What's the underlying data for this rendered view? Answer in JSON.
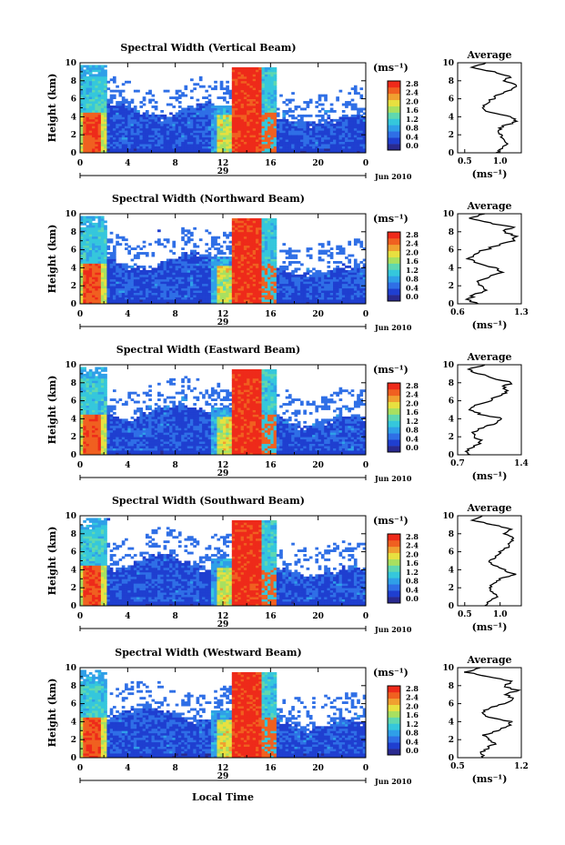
{
  "chart_data": [
    {
      "type": "heatmap",
      "title": "Spectral Width (Vertical Beam)",
      "ylabel": "Height (km)",
      "x_ticks": [
        "0",
        "4",
        "8",
        "12",
        "16",
        "20",
        "0"
      ],
      "y_ticks": [
        "0",
        "2",
        "4",
        "6",
        "8",
        "10"
      ],
      "xlim": [
        0,
        24
      ],
      "ylim": [
        0,
        10
      ],
      "day_label": "29",
      "date_label": "Jun 2010",
      "colorbar_unit": "(ms⁻¹)",
      "colorbar_ticks": [
        "0.0",
        "0.4",
        "0.8",
        "1.2",
        "1.6",
        "2.0",
        "2.4",
        "2.8"
      ],
      "average": {
        "title": "Average",
        "xlabel": "(ms⁻¹)",
        "x_ticks": [
          "0.5",
          "1.0"
        ],
        "xlim": [
          0.4,
          1.3
        ],
        "y_ticks": [
          "0",
          "2",
          "4",
          "6",
          "8",
          "10"
        ],
        "height": [
          0,
          0.5,
          1,
          1.5,
          2,
          2.5,
          3,
          3.5,
          4,
          4.5,
          5,
          5.5,
          6,
          6.5,
          7,
          7.5,
          8,
          8.5,
          9,
          9.5,
          10
        ],
        "value": [
          0.95,
          1.02,
          1.08,
          1.05,
          1.0,
          0.98,
          1.05,
          1.25,
          1.15,
          0.85,
          0.75,
          0.8,
          0.9,
          0.98,
          1.15,
          1.22,
          1.05,
          1.15,
          0.9,
          0.6,
          0.8
        ]
      }
    },
    {
      "type": "heatmap",
      "title": "Spectral Width (Northward Beam)",
      "ylabel": "Height (km)",
      "x_ticks": [
        "0",
        "4",
        "8",
        "12",
        "16",
        "20",
        "0"
      ],
      "y_ticks": [
        "0",
        "2",
        "4",
        "6",
        "8",
        "10"
      ],
      "xlim": [
        0,
        24
      ],
      "ylim": [
        0,
        10
      ],
      "day_label": "29",
      "date_label": "Jun 2010",
      "colorbar_unit": "(ms⁻¹)",
      "colorbar_ticks": [
        "0.0",
        "0.4",
        "0.8",
        "1.2",
        "1.6",
        "2.0",
        "2.4",
        "2.8"
      ],
      "average": {
        "title": "Average",
        "xlabel": "(ms⁻¹)",
        "x_ticks": [
          "0.6",
          "1.3"
        ],
        "xlim": [
          0.6,
          1.3
        ],
        "y_ticks": [
          "0",
          "2",
          "4",
          "6",
          "8",
          "10"
        ],
        "height": [
          0,
          0.5,
          1,
          1.5,
          2,
          2.5,
          3,
          3.5,
          4,
          4.5,
          5,
          5.5,
          6,
          6.5,
          7,
          7.5,
          8,
          8.5,
          9,
          9.5,
          10
        ],
        "value": [
          0.8,
          0.72,
          0.78,
          0.9,
          0.85,
          0.8,
          0.95,
          1.1,
          1.0,
          0.8,
          0.72,
          0.78,
          0.9,
          1.05,
          1.2,
          1.25,
          1.1,
          1.2,
          0.95,
          0.75,
          0.9
        ]
      }
    },
    {
      "type": "heatmap",
      "title": "Spectral Width (Eastward Beam)",
      "ylabel": "Height (km)",
      "x_ticks": [
        "0",
        "4",
        "8",
        "12",
        "16",
        "20",
        "0"
      ],
      "y_ticks": [
        "0",
        "2",
        "4",
        "6",
        "8",
        "10"
      ],
      "xlim": [
        0,
        24
      ],
      "ylim": [
        0,
        10
      ],
      "day_label": "29",
      "date_label": "Jun 2010",
      "colorbar_unit": "(ms⁻¹)",
      "colorbar_ticks": [
        "0.0",
        "0.4",
        "0.8",
        "1.2",
        "1.6",
        "2.0",
        "2.4",
        "2.8"
      ],
      "average": {
        "title": "Average",
        "xlabel": "(ms⁻¹)",
        "x_ticks": [
          "0.7",
          "1.4"
        ],
        "xlim": [
          0.7,
          1.4
        ],
        "y_ticks": [
          "0",
          "2",
          "4",
          "6",
          "8",
          "10"
        ],
        "height": [
          0,
          0.5,
          1,
          1.5,
          2,
          2.5,
          3,
          3.5,
          4,
          4.5,
          5,
          5.5,
          6,
          6.5,
          7,
          7.5,
          8,
          8.5,
          9,
          9.5,
          10
        ],
        "value": [
          0.85,
          0.8,
          0.9,
          0.95,
          0.9,
          0.88,
          0.98,
          1.1,
          1.2,
          0.95,
          0.85,
          0.9,
          1.05,
          1.15,
          1.25,
          1.2,
          1.3,
          1.1,
          0.95,
          0.8,
          1.0
        ]
      }
    },
    {
      "type": "heatmap",
      "title": "Spectral Width (Southward Beam)",
      "ylabel": "Height (km)",
      "x_ticks": [
        "0",
        "4",
        "8",
        "12",
        "16",
        "20",
        "0"
      ],
      "y_ticks": [
        "0",
        "2",
        "4",
        "6",
        "8",
        "10"
      ],
      "xlim": [
        0,
        24
      ],
      "ylim": [
        0,
        10
      ],
      "day_label": "29",
      "date_label": "Jun 2010",
      "colorbar_unit": "(ms⁻¹)",
      "colorbar_ticks": [
        "0.0",
        "0.4",
        "0.8",
        "1.2",
        "1.6",
        "2.0",
        "2.4",
        "2.8"
      ],
      "average": {
        "title": "Average",
        "xlabel": "(ms⁻¹)",
        "x_ticks": [
          "0.5",
          "1.0"
        ],
        "xlim": [
          0.4,
          1.3
        ],
        "y_ticks": [
          "0",
          "2",
          "4",
          "6",
          "8",
          "10"
        ],
        "height": [
          0,
          0.5,
          1,
          1.5,
          2,
          2.5,
          3,
          3.5,
          4,
          4.5,
          5,
          5.5,
          6,
          6.5,
          7,
          7.5,
          8,
          8.5,
          9,
          9.5,
          10
        ],
        "value": [
          0.8,
          0.85,
          0.95,
          0.9,
          0.85,
          0.9,
          1.0,
          1.2,
          1.05,
          0.9,
          0.85,
          0.95,
          1.0,
          1.1,
          1.15,
          1.2,
          1.05,
          1.15,
          0.9,
          0.6,
          0.75
        ]
      }
    },
    {
      "type": "heatmap",
      "title": "Spectral Width (Westward Beam)",
      "ylabel": "Height (km)",
      "x_ticks": [
        "0",
        "4",
        "8",
        "12",
        "16",
        "20",
        "0"
      ],
      "y_ticks": [
        "0",
        "2",
        "4",
        "6",
        "8",
        "10"
      ],
      "xlim": [
        0,
        24
      ],
      "ylim": [
        0,
        10
      ],
      "day_label": "29",
      "date_label": "Jun 2010",
      "colorbar_unit": "(ms⁻¹)",
      "colorbar_ticks": [
        "0.0",
        "0.4",
        "0.8",
        "1.2",
        "1.6",
        "2.0",
        "2.4",
        "2.8"
      ],
      "average": {
        "title": "Average",
        "xlabel": "(ms⁻¹)",
        "x_ticks": [
          "0.5",
          "1.2"
        ],
        "xlim": [
          0.5,
          1.2
        ],
        "y_ticks": [
          "0",
          "2",
          "4",
          "6",
          "8",
          "10"
        ],
        "height": [
          0,
          0.5,
          1,
          1.5,
          2,
          2.5,
          3,
          3.5,
          4,
          4.5,
          5,
          5.5,
          6,
          6.5,
          7,
          7.5,
          8,
          8.5,
          9,
          9.5,
          10
        ],
        "value": [
          0.8,
          0.75,
          0.82,
          0.9,
          0.85,
          0.8,
          0.95,
          1.05,
          1.1,
          0.85,
          0.78,
          0.85,
          1.0,
          1.1,
          1.05,
          1.15,
          1.0,
          1.1,
          0.85,
          0.6,
          0.75
        ]
      }
    }
  ],
  "figure": {
    "xlabel": "Local Time"
  },
  "colormap": [
    "#2a2a8f",
    "#1f3fd0",
    "#2f6fe6",
    "#2f9fe8",
    "#35c7dc",
    "#5fd8b0",
    "#a8e060",
    "#e8e040",
    "#f0a030",
    "#f06020",
    "#ee2a1a"
  ]
}
